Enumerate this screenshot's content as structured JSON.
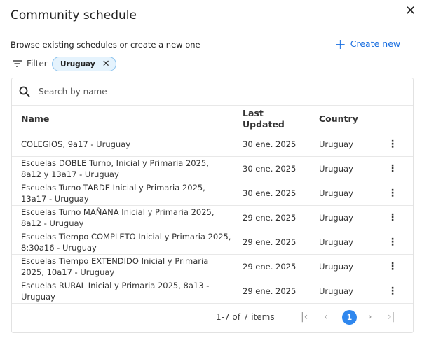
{
  "dialog": {
    "title": "Community schedule",
    "subtitle": "Browse existing schedules or create a new one",
    "create_label": "Create new",
    "filter_label": "Filter",
    "filter_chip": "Uruguay"
  },
  "search": {
    "placeholder": "Search by name"
  },
  "table": {
    "columns": [
      "Name",
      "Last Updated",
      "Country"
    ],
    "rows": [
      {
        "name": "COLEGIOS, 9a17 - Uruguay",
        "updated": "30 ene. 2025",
        "country": "Uruguay"
      },
      {
        "name": "Escuelas DOBLE Turno, Inicial y Primaria 2025, 8a12 y 13a17 - Uruguay",
        "updated": "30 ene. 2025",
        "country": "Uruguay"
      },
      {
        "name": "Escuelas Turno TARDE Inicial y Primaria 2025, 13a17 - Uruguay",
        "updated": "30 ene. 2025",
        "country": "Uruguay"
      },
      {
        "name": "Escuelas Turno MAÑANA Inicial y Primaria 2025, 8a12 - Uruguay",
        "updated": "29 ene. 2025",
        "country": "Uruguay"
      },
      {
        "name": "Escuelas Tiempo COMPLETO Inicial y Primaria 2025, 8:30a16 - Uruguay",
        "updated": "29 ene. 2025",
        "country": "Uruguay"
      },
      {
        "name": "Escuelas Tiempo EXTENDIDO Inicial y Primaria 2025, 10a17 - Uruguay",
        "updated": "29 ene. 2025",
        "country": "Uruguay"
      },
      {
        "name": "Escuelas RURAL Inicial y Primaria 2025, 8a13 - Uruguay",
        "updated": "29 ene. 2025",
        "country": "Uruguay"
      }
    ]
  },
  "pagination": {
    "summary": "1-7 of 7 items",
    "current_page": "1"
  },
  "colors": {
    "accent": "#1a6fe0",
    "page_active": "#2f87ee",
    "chip_bg": "#e5f3fd"
  }
}
